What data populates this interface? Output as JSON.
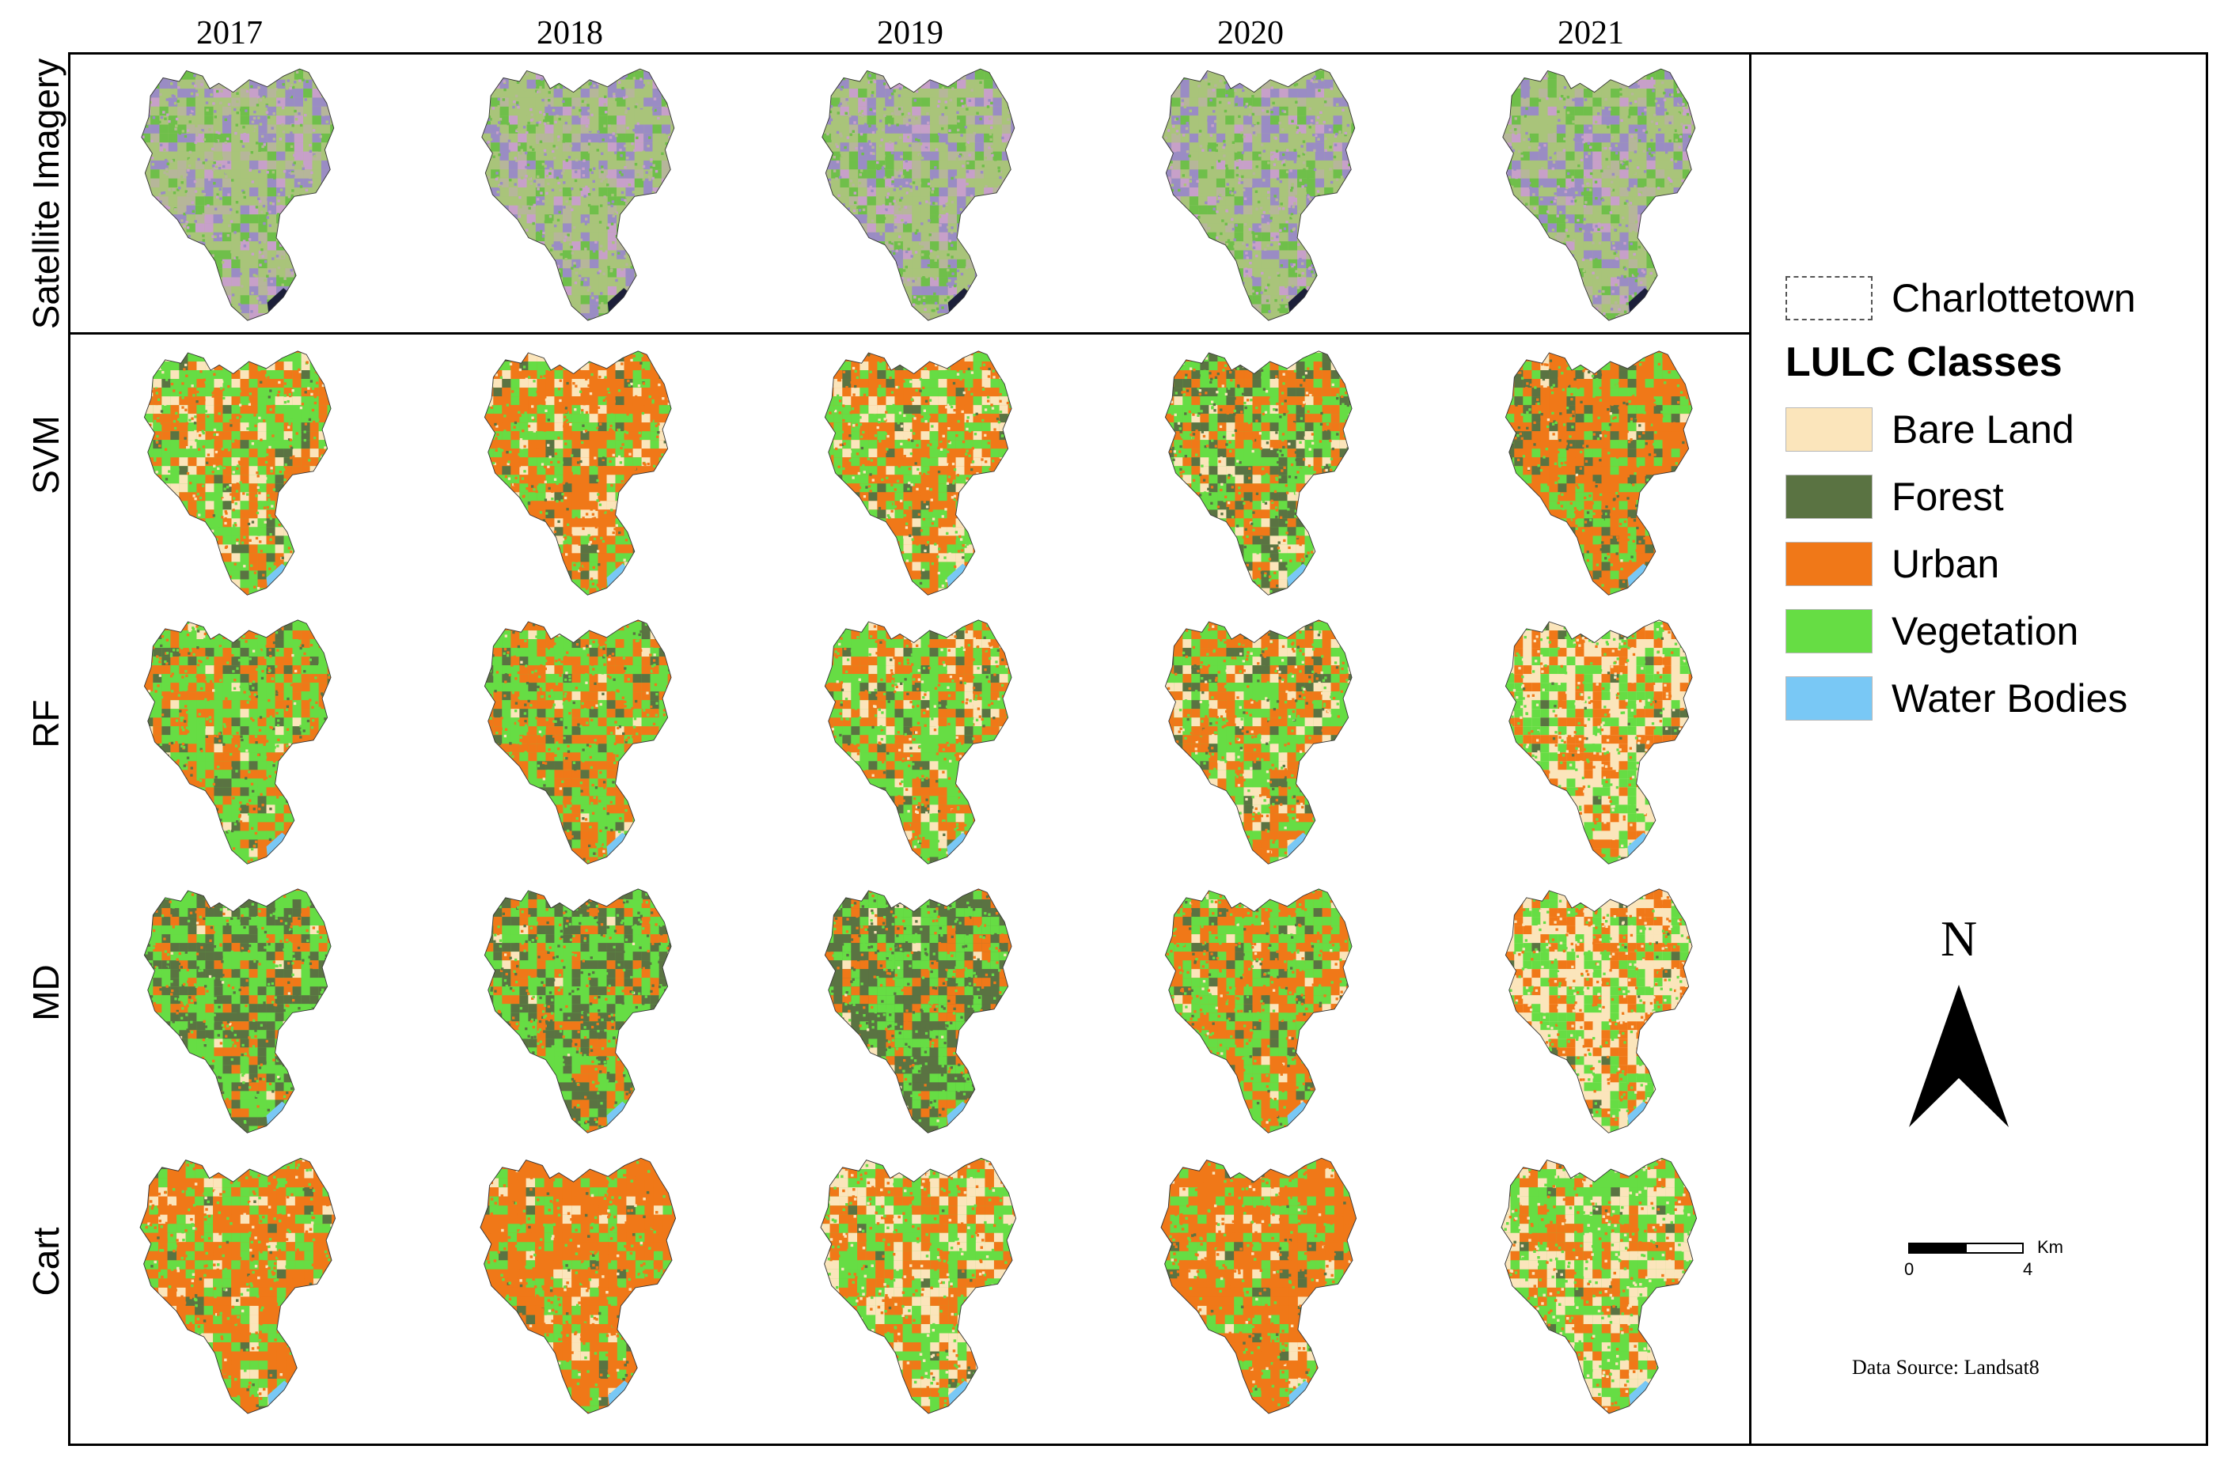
{
  "years": [
    "2017",
    "2018",
    "2019",
    "2020",
    "2021"
  ],
  "rows": [
    "Satellite Imagery",
    "SVM",
    "RF",
    "MD",
    "Cart"
  ],
  "boundary_label": "Charlottetown",
  "legend_title": "LULC Classes",
  "classes": [
    {
      "name": "Bare Land",
      "color": "#fbe5bb"
    },
    {
      "name": "Forest",
      "color": "#5a7342"
    },
    {
      "name": "Urban",
      "color": "#f07818"
    },
    {
      "name": "Vegetation",
      "color": "#66dd44"
    },
    {
      "name": "Water Bodies",
      "color": "#79c8f5"
    }
  ],
  "satellite_colors": [
    "#a9c47a",
    "#9a8cc4",
    "#c7a0c9",
    "#6fbf4a",
    "#b6b69a"
  ],
  "north_label": "N",
  "scale_bar": {
    "unit": "Km",
    "start": "0",
    "end": "4"
  },
  "data_source": "Data Source: Landsat8",
  "map_cells": [
    {
      "row": "Satellite Imagery",
      "year": "2017",
      "mix": {}
    },
    {
      "row": "Satellite Imagery",
      "year": "2018",
      "mix": {}
    },
    {
      "row": "Satellite Imagery",
      "year": "2019",
      "mix": {}
    },
    {
      "row": "Satellite Imagery",
      "year": "2020",
      "mix": {}
    },
    {
      "row": "Satellite Imagery",
      "year": "2021",
      "mix": {}
    },
    {
      "row": "SVM",
      "year": "2017",
      "mix": {
        "Urban": 0.36,
        "Vegetation": 0.38,
        "Bare Land": 0.16,
        "Forest": 0.08,
        "Water Bodies": 0.02
      }
    },
    {
      "row": "SVM",
      "year": "2018",
      "mix": {
        "Urban": 0.5,
        "Vegetation": 0.28,
        "Bare Land": 0.14,
        "Forest": 0.06,
        "Water Bodies": 0.02
      }
    },
    {
      "row": "SVM",
      "year": "2019",
      "mix": {
        "Urban": 0.4,
        "Vegetation": 0.36,
        "Bare Land": 0.16,
        "Forest": 0.06,
        "Water Bodies": 0.02
      }
    },
    {
      "row": "SVM",
      "year": "2020",
      "mix": {
        "Urban": 0.28,
        "Vegetation": 0.34,
        "Bare Land": 0.12,
        "Forest": 0.24,
        "Water Bodies": 0.02
      }
    },
    {
      "row": "SVM",
      "year": "2021",
      "mix": {
        "Urban": 0.56,
        "Vegetation": 0.24,
        "Bare Land": 0.02,
        "Forest": 0.14,
        "Water Bodies": 0.04
      }
    },
    {
      "row": "RF",
      "year": "2017",
      "mix": {
        "Urban": 0.36,
        "Vegetation": 0.46,
        "Bare Land": 0.04,
        "Forest": 0.12,
        "Water Bodies": 0.02
      }
    },
    {
      "row": "RF",
      "year": "2018",
      "mix": {
        "Urban": 0.4,
        "Vegetation": 0.42,
        "Bare Land": 0.04,
        "Forest": 0.12,
        "Water Bodies": 0.02
      }
    },
    {
      "row": "RF",
      "year": "2019",
      "mix": {
        "Urban": 0.34,
        "Vegetation": 0.44,
        "Bare Land": 0.12,
        "Forest": 0.08,
        "Water Bodies": 0.02
      }
    },
    {
      "row": "RF",
      "year": "2020",
      "mix": {
        "Urban": 0.36,
        "Vegetation": 0.38,
        "Bare Land": 0.14,
        "Forest": 0.1,
        "Water Bodies": 0.02
      }
    },
    {
      "row": "RF",
      "year": "2021",
      "mix": {
        "Urban": 0.3,
        "Vegetation": 0.28,
        "Bare Land": 0.36,
        "Forest": 0.04,
        "Water Bodies": 0.02
      }
    },
    {
      "row": "MD",
      "year": "2017",
      "mix": {
        "Urban": 0.2,
        "Vegetation": 0.42,
        "Bare Land": 0.02,
        "Forest": 0.34,
        "Water Bodies": 0.02
      }
    },
    {
      "row": "MD",
      "year": "2018",
      "mix": {
        "Urban": 0.24,
        "Vegetation": 0.4,
        "Bare Land": 0.02,
        "Forest": 0.32,
        "Water Bodies": 0.02
      }
    },
    {
      "row": "MD",
      "year": "2019",
      "mix": {
        "Urban": 0.22,
        "Vegetation": 0.36,
        "Bare Land": 0.02,
        "Forest": 0.38,
        "Water Bodies": 0.02
      }
    },
    {
      "row": "MD",
      "year": "2020",
      "mix": {
        "Urban": 0.42,
        "Vegetation": 0.42,
        "Bare Land": 0.04,
        "Forest": 0.1,
        "Water Bodies": 0.02
      }
    },
    {
      "row": "MD",
      "year": "2021",
      "mix": {
        "Urban": 0.28,
        "Vegetation": 0.32,
        "Bare Land": 0.36,
        "Forest": 0.02,
        "Water Bodies": 0.02
      }
    },
    {
      "row": "Cart",
      "year": "2017",
      "mix": {
        "Urban": 0.54,
        "Vegetation": 0.3,
        "Bare Land": 0.1,
        "Forest": 0.04,
        "Water Bodies": 0.02
      }
    },
    {
      "row": "Cart",
      "year": "2018",
      "mix": {
        "Urban": 0.68,
        "Vegetation": 0.2,
        "Bare Land": 0.06,
        "Forest": 0.04,
        "Water Bodies": 0.02
      }
    },
    {
      "row": "Cart",
      "year": "2019",
      "mix": {
        "Urban": 0.34,
        "Vegetation": 0.36,
        "Bare Land": 0.26,
        "Forest": 0.02,
        "Water Bodies": 0.02
      }
    },
    {
      "row": "Cart",
      "year": "2020",
      "mix": {
        "Urban": 0.66,
        "Vegetation": 0.22,
        "Bare Land": 0.06,
        "Forest": 0.04,
        "Water Bodies": 0.02
      }
    },
    {
      "row": "Cart",
      "year": "2021",
      "mix": {
        "Urban": 0.26,
        "Vegetation": 0.4,
        "Bare Land": 0.3,
        "Forest": 0.02,
        "Water Bodies": 0.02
      }
    }
  ]
}
